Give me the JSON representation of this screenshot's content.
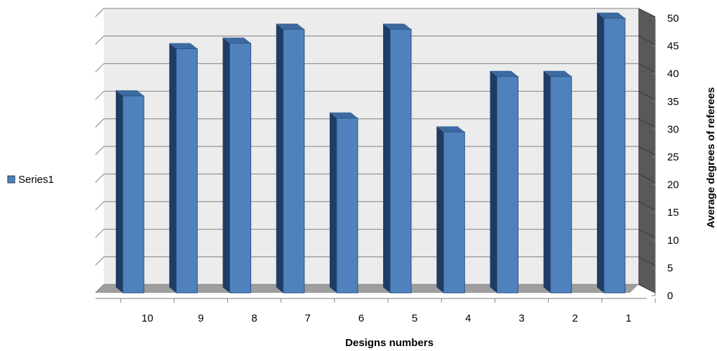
{
  "chart_data": {
    "type": "bar",
    "categories": [
      "10",
      "9",
      "8",
      "7",
      "6",
      "5",
      "4",
      "3",
      "2",
      "1"
    ],
    "series": [
      {
        "name": "Series1",
        "values": [
          35.5,
          44,
          45,
          47.5,
          31.5,
          47.5,
          29,
          39,
          39,
          49.5
        ]
      }
    ],
    "xlabel": "Designs numbers",
    "ylabel": "Average degrees of referees",
    "ylim": [
      0,
      50
    ],
    "yticks": [
      "0",
      "5",
      "10",
      "15",
      "20",
      "25",
      "30",
      "35",
      "40",
      "45",
      "50"
    ],
    "y_axis_side": "right",
    "grid": true,
    "legend_position": "left",
    "colors": {
      "bar_front": "#4f81bd",
      "bar_side": "#1f3c63",
      "bar_top": "#3d6aa0",
      "wall": "#ececec",
      "floor": "#9e9e9e",
      "side_wall": "#595959",
      "grid": "#808080"
    }
  }
}
